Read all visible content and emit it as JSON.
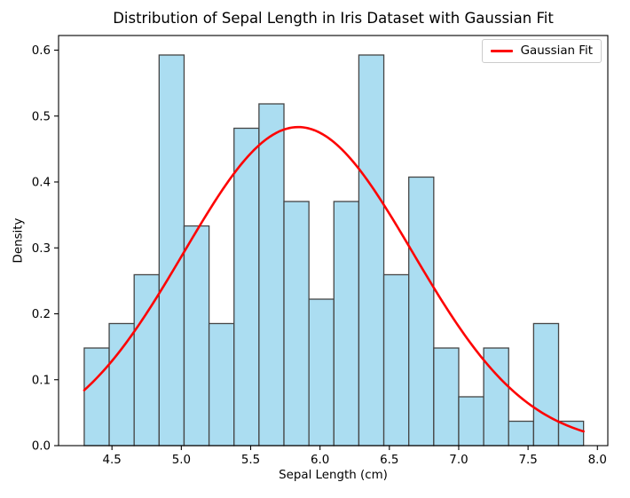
{
  "chart_data": {
    "type": "histogram_with_line_fit",
    "title": "Distribution of Sepal Length in Iris Dataset with Gaussian Fit",
    "xlabel": "Sepal Length (cm)",
    "ylabel": "Density",
    "xlim": [
      4.115,
      8.075
    ],
    "ylim": [
      0,
      0.6222
    ],
    "grid": false,
    "xtick_values": [
      4.5,
      5.0,
      5.5,
      6.0,
      6.5,
      7.0,
      7.5,
      8.0
    ],
    "xtick_labels": [
      "4.5",
      "5.0",
      "5.5",
      "6.0",
      "6.5",
      "7.0",
      "7.5",
      "8.0"
    ],
    "ytick_values": [
      0.0,
      0.1,
      0.2,
      0.3,
      0.4,
      0.5,
      0.6
    ],
    "ytick_labels": [
      "0.0",
      "0.1",
      "0.2",
      "0.3",
      "0.4",
      "0.5",
      "0.6"
    ],
    "histogram": {
      "bin_start": 4.3,
      "bin_width": 0.18,
      "n_bins": 20,
      "densities": [
        0.1481,
        0.1852,
        0.2593,
        0.5926,
        0.3333,
        0.1852,
        0.4815,
        0.5185,
        0.3704,
        0.2222,
        0.3704,
        0.5926,
        0.2593,
        0.4074,
        0.1481,
        0.0741,
        0.1481,
        0.037,
        0.1852,
        0.037
      ],
      "fill_color": "#abddf1",
      "edge_color": "#454545"
    },
    "gaussian_fit": {
      "label": "Gaussian Fit",
      "mean": 5.843,
      "std": 0.825,
      "peak_density": 0.4833,
      "x_start": 4.3,
      "x_end": 7.9,
      "color": "#fd0404"
    },
    "legend": {
      "position": "upper right",
      "items": [
        {
          "label": "Gaussian Fit",
          "color": "#fd0404"
        }
      ]
    }
  }
}
